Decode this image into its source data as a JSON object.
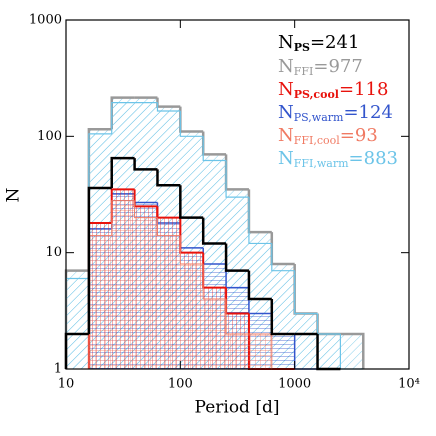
{
  "chart_data": {
    "type": "histogram",
    "xlabel": "Period [d]",
    "ylabel": "N",
    "xscale": "log",
    "yscale": "log",
    "xlim": [
      10,
      10000
    ],
    "ylim": [
      1,
      1000
    ],
    "xticks": [
      10,
      100,
      1000,
      {
        "value": 10000,
        "label": "10⁴"
      }
    ],
    "yticks": [
      1,
      10,
      100,
      1000
    ],
    "legend": "upper right",
    "bins": [
      10,
      15.85,
      25.12,
      39.81,
      63.1,
      100,
      158.5,
      251.2,
      398.1,
      631,
      1000,
      1585,
      2512,
      3981
    ],
    "series": [
      {
        "name": "N",
        "subscript": "PS",
        "count": "=241",
        "color": "#000000",
        "values": [
          2,
          36,
          65,
          52,
          38,
          20,
          12,
          7,
          4,
          2,
          2,
          1,
          null
        ]
      },
      {
        "name": "N",
        "subscript": "FFI",
        "count": "=977",
        "color": "#999999",
        "values": [
          7,
          115,
          215,
          215,
          180,
          110,
          70,
          35,
          15,
          8,
          3,
          2,
          2
        ]
      },
      {
        "name": "N",
        "subscript": "PS,cool",
        "count": "=118",
        "color": "#e8120c",
        "values": [
          null,
          18,
          35,
          25,
          20,
          10,
          5,
          3,
          1,
          1,
          null,
          null,
          null
        ]
      },
      {
        "name": "N",
        "subscript": "PS,warm",
        "count": "=124",
        "color": "#3355cc",
        "values": [
          null,
          16,
          32,
          27,
          18,
          11,
          8,
          5,
          3,
          2,
          1,
          1,
          null
        ]
      },
      {
        "name": "N",
        "subscript": "FFI,cool",
        "count": "=93",
        "color": "#f07a63",
        "values": [
          null,
          14,
          28,
          20,
          14,
          8,
          4,
          2,
          2,
          1,
          null,
          null,
          null
        ]
      },
      {
        "name": "N",
        "subscript": "FFI,warm",
        "count": "=883",
        "color": "#6cc4e8",
        "values": [
          6,
          105,
          195,
          195,
          165,
          100,
          62,
          30,
          12,
          7,
          3,
          2,
          1
        ]
      }
    ]
  }
}
